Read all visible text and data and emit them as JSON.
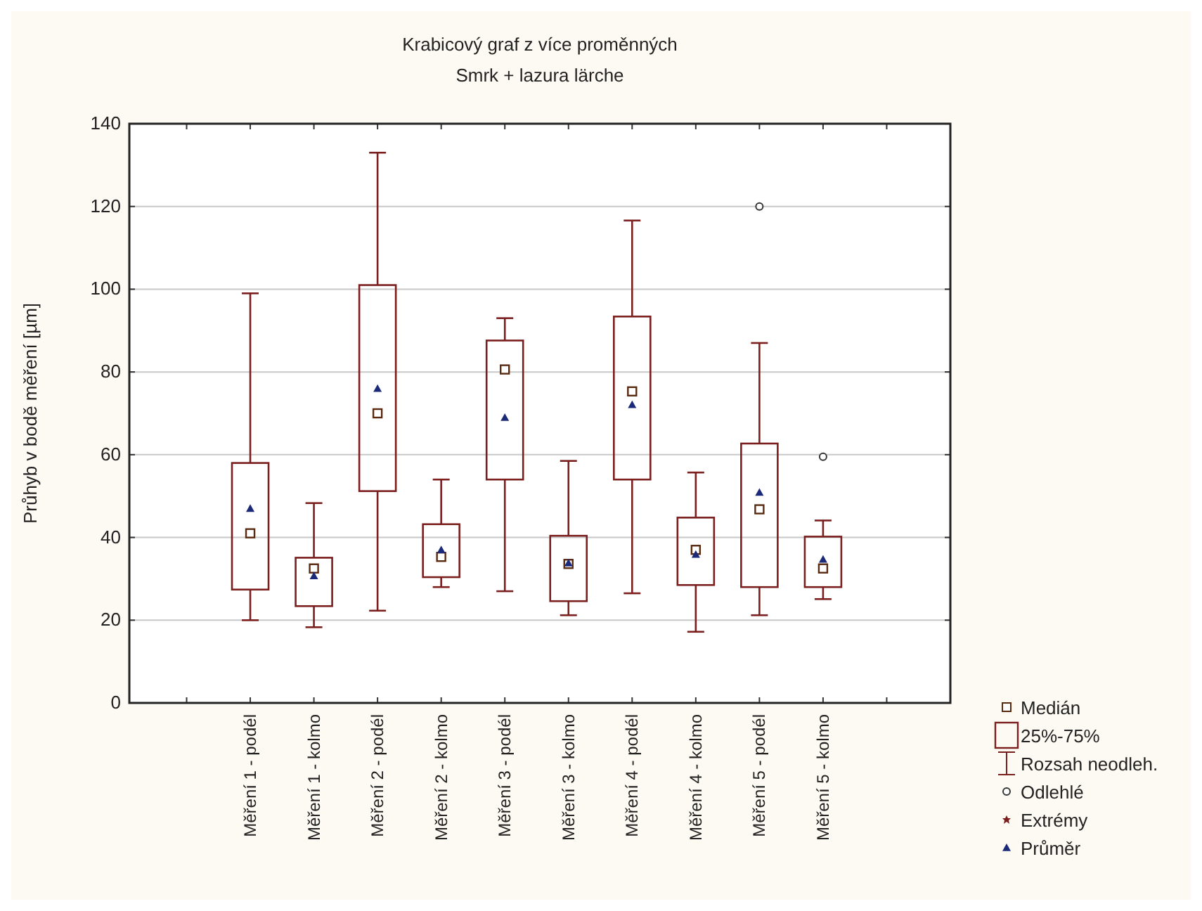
{
  "chart_data": {
    "type": "box",
    "title": "Krabicový graf z více proměnných",
    "subtitle": "Smrk + lazura lärche",
    "ylabel": "Průhyb v bodě měření  [µm]",
    "categories": [
      "Měření 1 - podél",
      "Měření 1 - kolmo",
      "Měření 2 - podél",
      "Měření 2 - kolmo",
      "Měření 3 - podél",
      "Měření 3 - kolmo",
      "Měření 4 - podél",
      "Měření 4 - kolmo",
      "Měření 5 - podél",
      "Měření 5 - kolmo"
    ],
    "ylim": [
      0,
      140
    ],
    "yticks": [
      0,
      20,
      40,
      60,
      80,
      100,
      120,
      140
    ],
    "grid": "y",
    "annotations": [
      "Medián",
      "25%-75%",
      "Rozsah neodleh.",
      "Odlehlé",
      "Extrémy",
      "Průměr"
    ],
    "series": [
      {
        "color": "#7a1e1e",
        "boxes": [
          {
            "low": 20,
            "q1": 27.4,
            "median": 41,
            "q3": 58,
            "high": 99,
            "mean": 47
          },
          {
            "low": 18.3,
            "q1": 23.4,
            "median": 32.5,
            "q3": 35.1,
            "high": 48.3,
            "mean": 30.7
          },
          {
            "low": 22.3,
            "q1": 51.2,
            "median": 70,
            "q3": 101,
            "high": 133,
            "mean": 76
          },
          {
            "low": 28,
            "q1": 30.4,
            "median": 35.3,
            "q3": 43.2,
            "high": 54,
            "mean": 37
          },
          {
            "low": 27,
            "q1": 54,
            "median": 80.6,
            "q3": 87.6,
            "high": 93,
            "mean": 69
          },
          {
            "low": 21.2,
            "q1": 24.6,
            "median": 33.6,
            "q3": 40.4,
            "high": 58.5,
            "mean": 33.8
          },
          {
            "low": 26.5,
            "q1": 54,
            "median": 75.3,
            "q3": 93.4,
            "high": 116.6,
            "mean": 72.1
          },
          {
            "low": 17.2,
            "q1": 28.5,
            "median": 37,
            "q3": 44.8,
            "high": 55.7,
            "mean": 35.9
          },
          {
            "low": 21.2,
            "q1": 28,
            "median": 46.8,
            "q3": 62.7,
            "high": 87,
            "mean": 50.9,
            "outliers": [
              120
            ]
          },
          {
            "low": 25.1,
            "q1": 28,
            "median": 32.5,
            "q3": 40.2,
            "high": 44.1,
            "mean": 34.7,
            "outliers": [
              59.5
            ]
          }
        ]
      }
    ]
  }
}
